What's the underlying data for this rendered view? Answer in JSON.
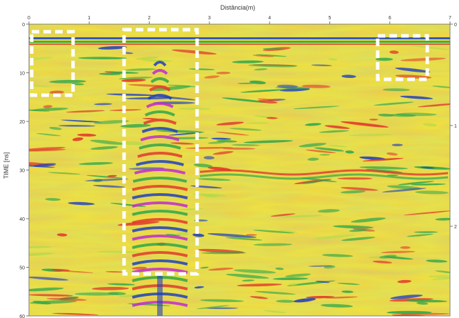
{
  "figure": {
    "x_axis_title": "Distância(m)",
    "y_axis_title": "TIME [ns]",
    "x_ticks": [
      "0",
      "1",
      "2",
      "3",
      "4",
      "5",
      "6",
      "7"
    ],
    "y_ticks": [
      "0",
      "10",
      "20",
      "30",
      "40",
      "50",
      "60"
    ],
    "right_ticks": [
      "0",
      "1",
      "2"
    ],
    "x_range_m": [
      0,
      7
    ],
    "time_range_ns": [
      0,
      60
    ],
    "colors": {
      "background": "#f3e13a",
      "light_green": "#b8d94a",
      "green": "#2fa64a",
      "red": "#e0392b",
      "blue": "#1f3fbf",
      "magenta": "#c02ad0",
      "highlight_box": "#ffffff"
    }
  }
}
